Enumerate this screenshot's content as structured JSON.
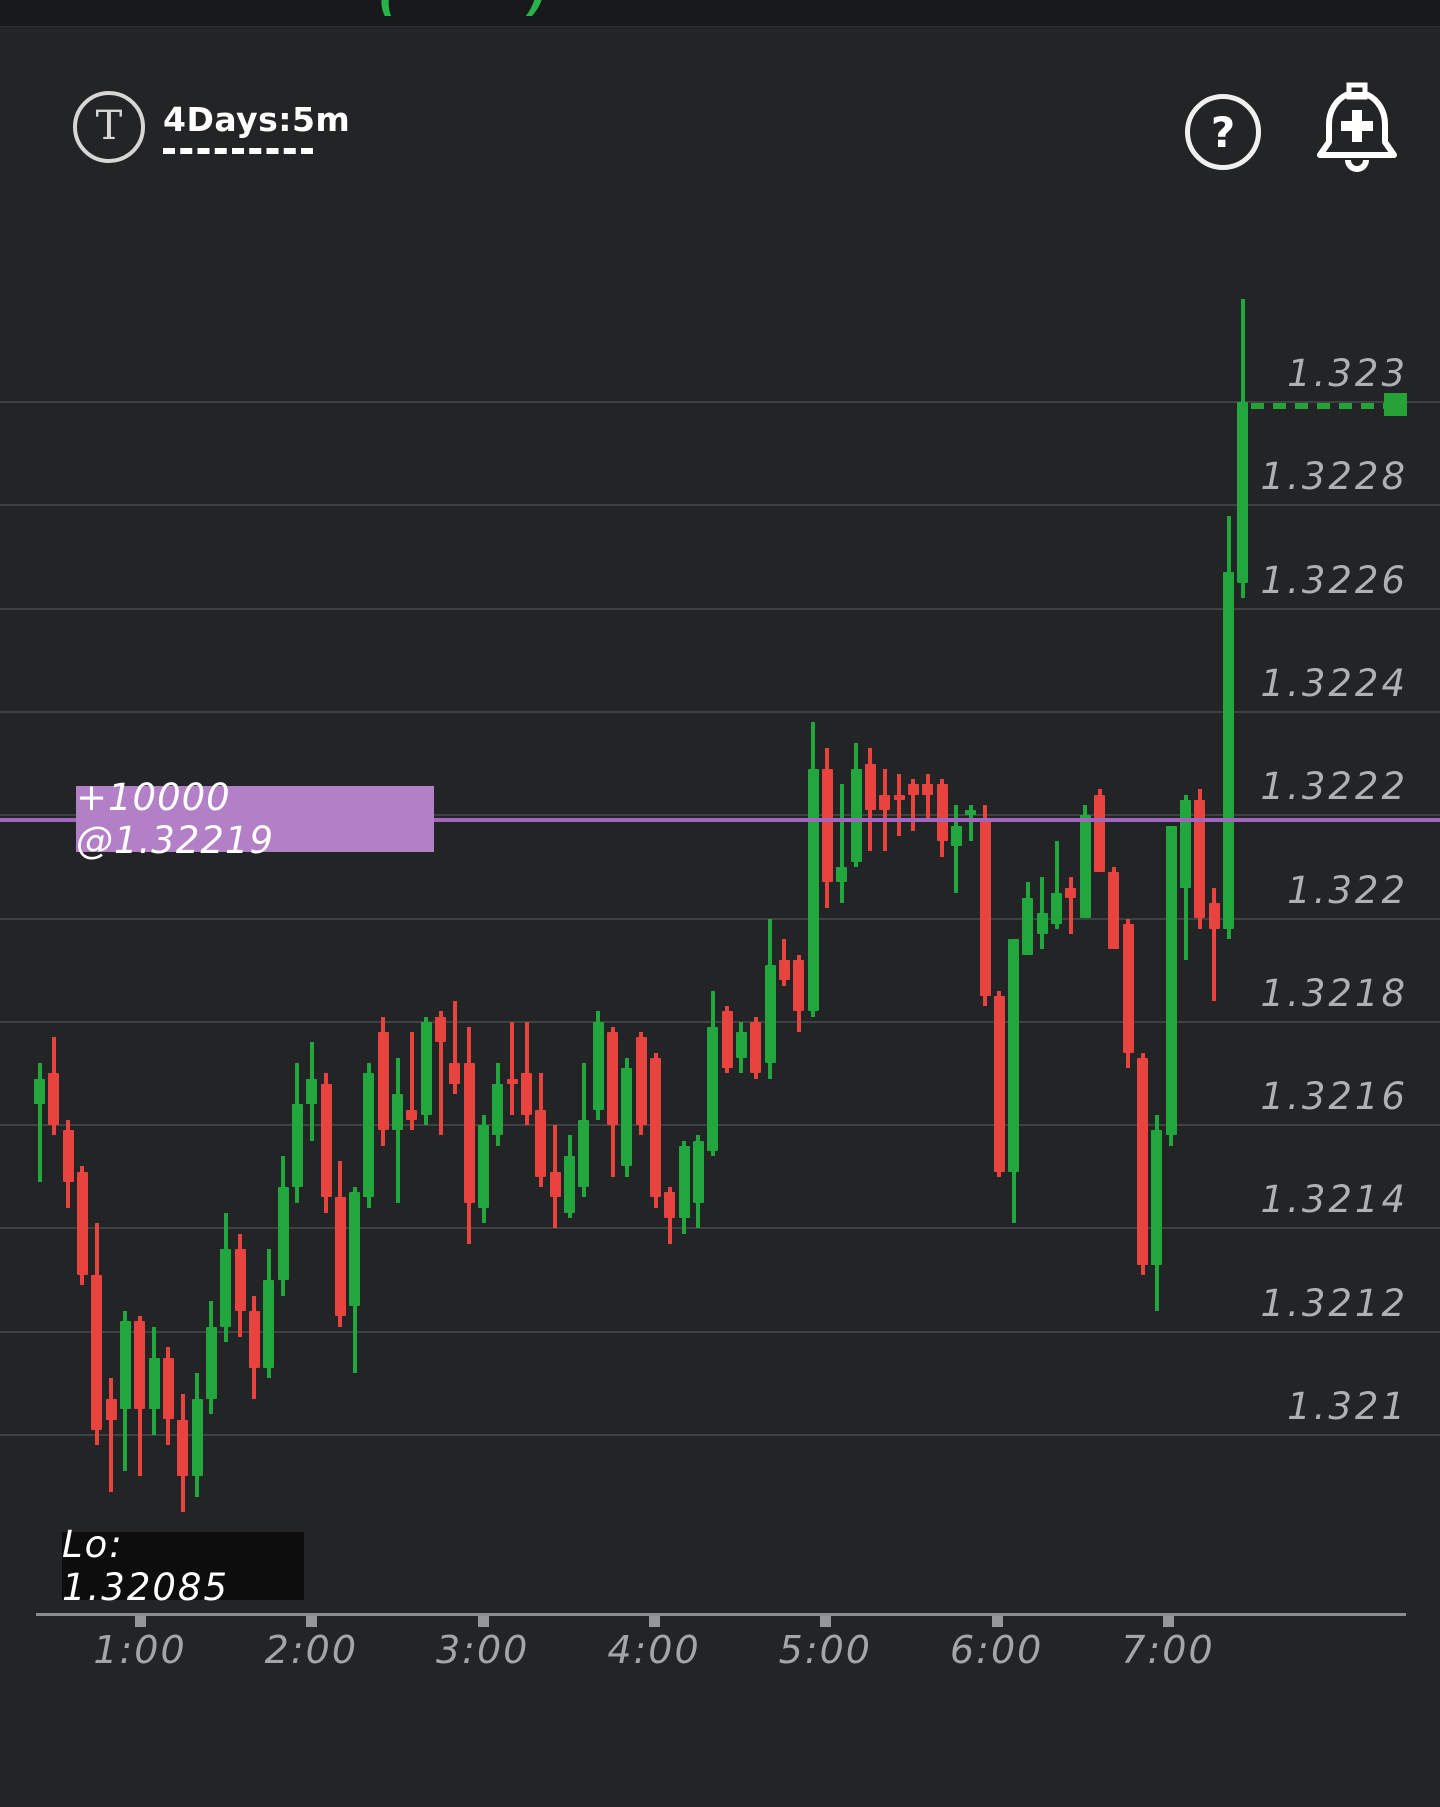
{
  "header": {
    "symbol_letter": "T",
    "timeframe": "4Days:5m",
    "help_label": "?",
    "alert_icon": "bell-plus-icon"
  },
  "top_fragments": {
    "left": "(",
    "right": ")"
  },
  "chart_data": {
    "type": "candlestick",
    "title": "",
    "instrument_hint": "GBP/USD-style 5-minute candles over 4-day view window",
    "y_axis": {
      "ticks": [
        {
          "label": "1.323",
          "value": 1.323
        },
        {
          "label": "1.3228",
          "value": 1.3228
        },
        {
          "label": "1.3226",
          "value": 1.3226
        },
        {
          "label": "1.3224",
          "value": 1.3224
        },
        {
          "label": "1.3222",
          "value": 1.3222
        },
        {
          "label": "1.322",
          "value": 1.322
        },
        {
          "label": "1.3218",
          "value": 1.3218
        },
        {
          "label": "1.3216",
          "value": 1.3216
        },
        {
          "label": "1.3214",
          "value": 1.3214
        },
        {
          "label": "1.3212",
          "value": 1.3212
        },
        {
          "label": "1.321",
          "value": 1.321
        }
      ],
      "range": [
        1.3208,
        1.3233
      ],
      "grid": true,
      "side": "right"
    },
    "x_axis": {
      "labels": [
        "1:00",
        "2:00",
        "3:00",
        "4:00",
        "5:00",
        "6:00",
        "7:00"
      ]
    },
    "current_price": {
      "value": 1.323,
      "style": "green-dashed-with-square-marker"
    },
    "position_line": {
      "label": "+10000 @1.32219",
      "price": 1.32219
    },
    "low_marker": {
      "label": "Lo: 1.32085",
      "price": 1.32085
    },
    "colors": {
      "up": "#22a73e",
      "down": "#e8433f",
      "position_line": "#a266bf",
      "position_label_bg": "#b37fc7",
      "current_price": "#27a237",
      "background": "#232426",
      "grid": "#3e3f41"
    },
    "candles_format": [
      "open",
      "high",
      "low",
      "close"
    ],
    "candles": [
      [
        1.32164,
        1.32172,
        1.32149,
        1.32169
      ],
      [
        1.3217,
        1.32177,
        1.32158,
        1.3216
      ],
      [
        1.32159,
        1.32161,
        1.32144,
        1.32149
      ],
      [
        1.32151,
        1.32152,
        1.32129,
        1.32131
      ],
      [
        1.32131,
        1.32141,
        1.32098,
        1.32101
      ],
      [
        1.32107,
        1.32111,
        1.32089,
        1.32103
      ],
      [
        1.32105,
        1.32124,
        1.32093,
        1.32122
      ],
      [
        1.32122,
        1.32123,
        1.32092,
        1.32105
      ],
      [
        1.32105,
        1.32121,
        1.321,
        1.32115
      ],
      [
        1.32115,
        1.32117,
        1.32098,
        1.32103
      ],
      [
        1.32103,
        1.32108,
        1.32085,
        1.32092
      ],
      [
        1.32092,
        1.32112,
        1.32088,
        1.32107
      ],
      [
        1.32107,
        1.32126,
        1.32104,
        1.32121
      ],
      [
        1.32121,
        1.32143,
        1.32118,
        1.32136
      ],
      [
        1.32136,
        1.32139,
        1.32119,
        1.32124
      ],
      [
        1.32124,
        1.32127,
        1.32107,
        1.32113
      ],
      [
        1.32113,
        1.32136,
        1.32111,
        1.3213
      ],
      [
        1.3213,
        1.32154,
        1.32127,
        1.32148
      ],
      [
        1.32148,
        1.32172,
        1.32145,
        1.32164
      ],
      [
        1.32164,
        1.32176,
        1.32157,
        1.32169
      ],
      [
        1.32168,
        1.3217,
        1.32143,
        1.32146
      ],
      [
        1.32146,
        1.32153,
        1.32121,
        1.32123
      ],
      [
        1.32125,
        1.32148,
        1.32112,
        1.32147
      ],
      [
        1.32146,
        1.32172,
        1.32144,
        1.3217
      ],
      [
        1.32178,
        1.32181,
        1.32156,
        1.32159
      ],
      [
        1.32159,
        1.32173,
        1.32145,
        1.32166
      ],
      [
        1.32163,
        1.32178,
        1.32159,
        1.32161
      ],
      [
        1.32162,
        1.32181,
        1.3216,
        1.3218
      ],
      [
        1.32181,
        1.32182,
        1.32158,
        1.32176
      ],
      [
        1.32172,
        1.32184,
        1.32166,
        1.32168
      ],
      [
        1.32172,
        1.32179,
        1.32137,
        1.32145
      ],
      [
        1.32144,
        1.32162,
        1.32141,
        1.3216
      ],
      [
        1.32158,
        1.32172,
        1.32156,
        1.32168
      ],
      [
        1.32169,
        1.3218,
        1.32162,
        1.32168
      ],
      [
        1.3217,
        1.3218,
        1.3216,
        1.32162
      ],
      [
        1.32163,
        1.3217,
        1.32148,
        1.3215
      ],
      [
        1.32151,
        1.3216,
        1.3214,
        1.32146
      ],
      [
        1.32143,
        1.32158,
        1.32142,
        1.32154
      ],
      [
        1.32148,
        1.32172,
        1.32146,
        1.32161
      ],
      [
        1.32163,
        1.32182,
        1.32161,
        1.3218
      ],
      [
        1.32178,
        1.32179,
        1.3215,
        1.3216
      ],
      [
        1.32152,
        1.32173,
        1.3215,
        1.32171
      ],
      [
        1.32177,
        1.32178,
        1.32158,
        1.3216
      ],
      [
        1.32173,
        1.32174,
        1.32144,
        1.32146
      ],
      [
        1.32147,
        1.32148,
        1.32137,
        1.32142
      ],
      [
        1.32142,
        1.32157,
        1.32139,
        1.32156
      ],
      [
        1.32145,
        1.32158,
        1.3214,
        1.32157
      ],
      [
        1.32155,
        1.32186,
        1.32154,
        1.32179
      ],
      [
        1.32182,
        1.32183,
        1.3217,
        1.32171
      ],
      [
        1.32173,
        1.3218,
        1.3217,
        1.32178
      ],
      [
        1.3218,
        1.32181,
        1.32169,
        1.3217
      ],
      [
        1.32172,
        1.322,
        1.32169,
        1.32191
      ],
      [
        1.32192,
        1.32196,
        1.32187,
        1.32188
      ],
      [
        1.32192,
        1.32193,
        1.32178,
        1.32182
      ],
      [
        1.32182,
        1.32238,
        1.32181,
        1.32229
      ],
      [
        1.32229,
        1.32233,
        1.32202,
        1.32207
      ],
      [
        1.32207,
        1.32226,
        1.32203,
        1.3221
      ],
      [
        1.32211,
        1.32234,
        1.3221,
        1.32229
      ],
      [
        1.3223,
        1.32233,
        1.32213,
        1.32221
      ],
      [
        1.32224,
        1.32229,
        1.32213,
        1.32221
      ],
      [
        1.32224,
        1.32228,
        1.32216,
        1.32223
      ],
      [
        1.32226,
        1.32227,
        1.32217,
        1.32224
      ],
      [
        1.32226,
        1.32228,
        1.32219,
        1.32224
      ],
      [
        1.32226,
        1.32227,
        1.32212,
        1.32215
      ],
      [
        1.32214,
        1.32222,
        1.32205,
        1.32218
      ],
      [
        1.3222,
        1.32222,
        1.32215,
        1.32221
      ],
      [
        1.32219,
        1.32222,
        1.32183,
        1.32185
      ],
      [
        1.32185,
        1.32186,
        1.3215,
        1.32151
      ],
      [
        1.32151,
        1.32196,
        1.32141,
        1.32196
      ],
      [
        1.32193,
        1.32207,
        1.32193,
        1.32204
      ],
      [
        1.32197,
        1.32208,
        1.32194,
        1.32201
      ],
      [
        1.32199,
        1.32215,
        1.32198,
        1.32205
      ],
      [
        1.32206,
        1.32208,
        1.32197,
        1.32204
      ],
      [
        1.322,
        1.32222,
        1.322,
        1.3222
      ],
      [
        1.32224,
        1.32225,
        1.32209,
        1.32209
      ],
      [
        1.32209,
        1.3221,
        1.32194,
        1.32194
      ],
      [
        1.32199,
        1.322,
        1.32171,
        1.32174
      ],
      [
        1.32173,
        1.32174,
        1.32131,
        1.32133
      ],
      [
        1.32133,
        1.32162,
        1.32124,
        1.32159
      ],
      [
        1.32158,
        1.32218,
        1.32156,
        1.32218
      ],
      [
        1.32206,
        1.32224,
        1.32192,
        1.32223
      ],
      [
        1.32223,
        1.32225,
        1.32198,
        1.322
      ],
      [
        1.32203,
        1.32206,
        1.32184,
        1.32198
      ],
      [
        1.32198,
        1.32278,
        1.32196,
        1.32267
      ],
      [
        1.32265,
        1.3232,
        1.32262,
        1.323
      ]
    ]
  }
}
